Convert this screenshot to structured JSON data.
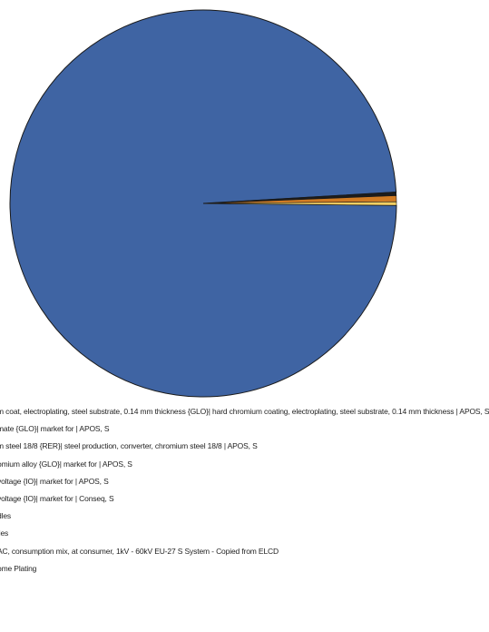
{
  "chart_data": {
    "type": "pie",
    "title": "",
    "colors": [
      "#3f64a3",
      "#1c1c1c",
      "#d27c24",
      "#f3cf63"
    ],
    "slices": [
      {
        "label": "m coat, electroplating, steel substrate, 0.14 mm thickness {GLO}| hard chromium coating, electroplating, steel substrate, 0.14 mm thickness | APOS, S",
        "value": 98.9
      },
      {
        "label": "mate {GLO}| market for | APOS, S",
        "value": 0.3
      },
      {
        "label": "m steel 18/8 {RER}| steel production, converter, chromium steel 18/8 | APOS, S",
        "value": 0.5
      },
      {
        "label": "omium alloy {GLO}| market for | APOS, S",
        "value": 0.3
      }
    ],
    "legend": [
      "m coat, electroplating, steel substrate, 0.14 mm thickness {GLO}| hard chromium coating, electroplating, steel substrate, 0.14 mm thickness | APOS, S",
      "mate {GLO}| market for | APOS, S",
      "m steel 18/8 {RER}| steel production, converter, chromium steel 18/8 | APOS, S",
      "omium alloy {GLO}| market for | APOS, S",
      "voltage {IO}| market for | APOS, S",
      "voltage {IO}| market for | Conseq, S",
      "dles",
      "lles",
      "AC, consumption mix, at consumer, 1kV - 60kV EU-27 S System - Copied from ELCD",
      "ome Plating"
    ],
    "legend_placement": "bottom"
  }
}
